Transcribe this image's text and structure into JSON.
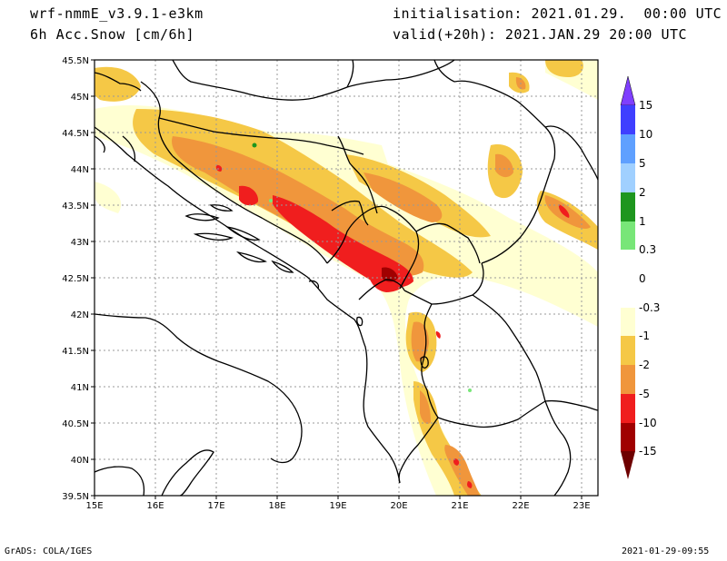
{
  "header": {
    "model": "wrf-nmmE_v3.9.1-e3km",
    "field": "6h Acc.Snow [cm/6h]",
    "init": "initialisation: 2021.01.29.  00:00 UTC",
    "valid": "valid(+20h): 2021.JAN.29 20:00 UTC"
  },
  "footer": {
    "left": "GrADS: COLA/IGES",
    "right": "2021-01-29-09:55"
  },
  "map": {
    "lon_range": [
      15,
      23.3
    ],
    "lat_range": [
      39.5,
      45.5
    ],
    "lon_ticks": [
      "15E",
      "16E",
      "17E",
      "18E",
      "19E",
      "20E",
      "21E",
      "22E",
      "23E"
    ],
    "lat_ticks": [
      "39.5N",
      "40N",
      "40.5N",
      "41N",
      "41.5N",
      "42N",
      "42.5N",
      "43N",
      "43.5N",
      "44N",
      "44.5N",
      "45N",
      "45.5N"
    ]
  },
  "colorbar": {
    "labels": [
      "15",
      "10",
      "5",
      "2",
      "1",
      "0.3",
      "0",
      "-0.3",
      "-1",
      "-2",
      "-5",
      "-10",
      "-15"
    ],
    "colors": [
      "#7f3fff",
      "#3f3fff",
      "#5fa0ff",
      "#a0d0ff",
      "#1e961e",
      "#78e678",
      "#ffffff",
      "#ffffd2",
      "#f5c846",
      "#f0963c",
      "#f01e1e",
      "#a00000"
    ]
  }
}
